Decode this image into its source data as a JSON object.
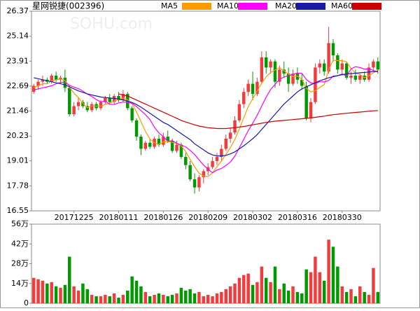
{
  "chart_data": {
    "type": "candlestick",
    "title": "星网锐捷(002396)",
    "watermark": "SOHU.com",
    "categories": [
      null,
      null,
      null,
      null,
      null,
      null,
      null,
      null,
      null,
      "20171225",
      null,
      null,
      null,
      null,
      null,
      null,
      null,
      null,
      null,
      "20180111",
      null,
      null,
      null,
      null,
      null,
      null,
      null,
      null,
      null,
      "20180126",
      null,
      null,
      null,
      null,
      null,
      null,
      null,
      null,
      null,
      "20180209",
      null,
      null,
      null,
      null,
      null,
      null,
      null,
      null,
      null,
      "20180302",
      null,
      null,
      null,
      null,
      null,
      null,
      null,
      null,
      null,
      "20180316",
      null,
      null,
      null,
      null,
      null,
      null,
      null,
      null,
      null,
      "20180330",
      null,
      null,
      null,
      null,
      null,
      null,
      null,
      null
    ],
    "open": [
      22.4,
      22.7,
      22.9,
      23.0,
      22.9,
      23.2,
      23.0,
      23.1,
      22.6,
      21.3,
      21.7,
      21.9,
      21.7,
      21.5,
      21.8,
      21.6,
      21.9,
      22.1,
      21.9,
      22.2,
      22.0,
      22.3,
      21.6,
      21.0,
      20.2,
      19.6,
      19.9,
      19.7,
      20.1,
      19.8,
      20.2,
      20.0,
      19.5,
      19.8,
      19.2,
      18.8,
      18.1,
      17.7,
      18.2,
      18.5,
      18.7,
      19.0,
      19.2,
      19.6,
      20.1,
      20.4,
      21.0,
      21.8,
      22.4,
      22.8,
      22.3,
      22.9,
      24.1,
      23.6,
      23.9,
      22.9,
      23.5,
      23.3,
      22.8,
      23.3,
      23.0,
      22.7,
      21.1,
      21.9,
      23.6,
      23.8,
      23.4,
      24.8,
      24.2,
      23.5,
      23.8,
      23.1,
      23.2,
      23.0,
      23.2,
      23.0,
      23.6,
      23.9
    ],
    "high": [
      22.8,
      23.0,
      23.2,
      23.1,
      23.3,
      23.4,
      23.2,
      23.5,
      22.7,
      21.9,
      22.1,
      22.0,
      21.9,
      21.9,
      21.9,
      22.0,
      22.2,
      22.3,
      22.3,
      22.4,
      22.5,
      22.4,
      21.7,
      21.1,
      20.3,
      20.0,
      20.1,
      20.2,
      20.3,
      20.4,
      20.5,
      20.1,
      20.0,
      19.9,
      19.4,
      19.0,
      18.4,
      18.3,
      18.6,
      18.9,
      19.2,
      19.4,
      19.8,
      20.3,
      20.6,
      21.2,
      22.0,
      22.6,
      23.0,
      23.4,
      23.1,
      24.4,
      24.4,
      24.0,
      24.0,
      23.7,
      23.9,
      23.6,
      23.5,
      23.6,
      23.3,
      22.9,
      22.1,
      23.8,
      24.0,
      24.0,
      25.6,
      25.0,
      24.3,
      24.0,
      23.9,
      23.4,
      23.5,
      23.3,
      23.4,
      23.8,
      24.0,
      24.1
    ],
    "low": [
      22.3,
      22.5,
      22.7,
      22.8,
      22.8,
      22.9,
      22.8,
      22.4,
      21.2,
      21.2,
      21.5,
      21.6,
      21.4,
      21.4,
      21.5,
      21.5,
      21.8,
      21.8,
      21.8,
      21.9,
      21.9,
      21.5,
      20.9,
      20.0,
      19.3,
      19.5,
      19.6,
      19.6,
      19.7,
      19.7,
      19.9,
      19.4,
      19.4,
      19.1,
      18.6,
      18.0,
      17.4,
      17.5,
      17.9,
      18.3,
      18.6,
      18.8,
      19.0,
      19.5,
      19.9,
      20.3,
      20.9,
      21.6,
      22.2,
      22.0,
      22.2,
      22.8,
      23.3,
      23.3,
      22.6,
      22.7,
      23.1,
      22.4,
      22.7,
      22.8,
      22.5,
      21.0,
      20.9,
      21.8,
      23.3,
      23.2,
      23.3,
      23.9,
      23.3,
      23.2,
      23.0,
      22.8,
      22.9,
      22.8,
      22.9,
      22.9,
      23.4,
      23.3
    ],
    "close": [
      22.7,
      22.9,
      23.0,
      22.9,
      23.2,
      23.0,
      23.1,
      22.6,
      21.3,
      21.7,
      21.9,
      21.7,
      21.5,
      21.8,
      21.6,
      21.9,
      22.1,
      21.9,
      22.2,
      22.0,
      22.3,
      21.6,
      21.0,
      20.2,
      19.6,
      19.9,
      19.7,
      20.1,
      19.8,
      20.2,
      20.0,
      19.5,
      19.8,
      19.2,
      18.8,
      18.1,
      17.7,
      18.2,
      18.5,
      18.7,
      19.0,
      19.2,
      19.6,
      20.1,
      20.4,
      21.0,
      21.8,
      22.4,
      22.8,
      22.3,
      22.9,
      24.1,
      23.6,
      23.9,
      22.9,
      23.5,
      23.3,
      22.8,
      23.3,
      23.0,
      22.7,
      21.1,
      21.9,
      23.6,
      23.8,
      23.4,
      24.8,
      24.2,
      23.5,
      23.8,
      23.1,
      23.2,
      23.0,
      23.2,
      23.0,
      23.6,
      23.9,
      23.5
    ],
    "up_color": "#f03c3c",
    "down_color": "#009a00",
    "ylim": [
      16.55,
      26.37
    ],
    "yticks": [
      16.55,
      17.78,
      19.01,
      20.23,
      21.46,
      22.69,
      23.91,
      25.14,
      26.37
    ],
    "series": [
      {
        "name": "MA5",
        "color": "#ff9900",
        "values": [
          22.6,
          22.7,
          22.8,
          22.8,
          22.94,
          23.0,
          23.04,
          22.96,
          22.64,
          22.34,
          22.12,
          21.84,
          21.62,
          21.72,
          21.7,
          21.7,
          21.78,
          21.86,
          21.94,
          22.02,
          22.1,
          22.0,
          21.82,
          21.42,
          20.94,
          20.46,
          20.08,
          19.9,
          19.82,
          19.94,
          19.96,
          19.92,
          19.86,
          19.74,
          19.46,
          19.08,
          18.72,
          18.4,
          18.26,
          18.24,
          18.42,
          18.72,
          19.0,
          19.32,
          19.66,
          20.06,
          20.58,
          21.14,
          21.68,
          22.06,
          22.44,
          22.82,
          23.14,
          23.36,
          23.48,
          23.6,
          23.44,
          23.28,
          23.16,
          23.18,
          23.02,
          22.58,
          22.4,
          22.46,
          22.62,
          22.76,
          23.5,
          23.96,
          23.94,
          23.94,
          23.88,
          23.56,
          23.32,
          23.26,
          23.1,
          23.2,
          23.34,
          23.44
        ]
      },
      {
        "name": "MA10",
        "color": "#ff00ff",
        "values": [
          22.5,
          22.55,
          22.6,
          22.65,
          22.7,
          22.8,
          22.87,
          22.88,
          22.72,
          22.64,
          22.56,
          22.44,
          22.29,
          22.18,
          22.02,
          21.91,
          21.95,
          21.79,
          21.78,
          21.86,
          21.9,
          21.89,
          21.84,
          21.68,
          21.48,
          21.28,
          21.04,
          20.66,
          20.38,
          20.2,
          19.98,
          20.0,
          19.88,
          19.78,
          19.7,
          19.52,
          19.32,
          19.06,
          18.8,
          18.6,
          18.42,
          18.56,
          18.63,
          18.78,
          18.95,
          19.24,
          19.65,
          20.07,
          20.5,
          20.86,
          21.25,
          21.7,
          22.14,
          22.52,
          22.77,
          23.02,
          23.13,
          23.21,
          23.26,
          23.33,
          23.31,
          23.01,
          22.84,
          22.81,
          22.9,
          22.89,
          22.96,
          23.18,
          23.2,
          23.28,
          23.19,
          23.53,
          23.64,
          23.6,
          23.52,
          23.54,
          23.45,
          23.38
        ]
      },
      {
        "name": "MA20",
        "color": "#1a1aa6",
        "values": [
          23.1,
          23.05,
          23.0,
          22.95,
          22.9,
          22.85,
          22.8,
          22.75,
          22.65,
          22.55,
          22.45,
          22.38,
          22.3,
          22.25,
          22.2,
          22.15,
          22.12,
          22.1,
          22.08,
          22.05,
          22.0,
          21.95,
          21.88,
          21.78,
          21.65,
          21.5,
          21.35,
          21.2,
          21.05,
          20.9,
          20.8,
          20.65,
          20.5,
          20.35,
          20.2,
          20.05,
          19.85,
          19.7,
          19.55,
          19.4,
          19.3,
          19.25,
          19.25,
          19.28,
          19.35,
          19.45,
          19.6,
          19.75,
          19.92,
          20.1,
          20.3,
          20.55,
          20.8,
          21.05,
          21.3,
          21.55,
          21.8,
          22.0,
          22.2,
          22.4,
          22.55,
          22.65,
          22.75,
          22.85,
          22.95,
          23.02,
          23.1,
          23.15,
          23.2,
          23.25,
          23.28,
          23.3,
          23.32,
          23.34,
          23.36,
          23.38,
          23.4,
          23.42
        ]
      },
      {
        "name": "MA60",
        "color": "#cc0000",
        "values": [
          null,
          null,
          null,
          null,
          null,
          null,
          null,
          null,
          null,
          null,
          null,
          null,
          null,
          null,
          null,
          null,
          null,
          null,
          null,
          22.3,
          22.25,
          22.2,
          22.1,
          22.0,
          21.9,
          21.8,
          21.7,
          21.6,
          21.5,
          21.4,
          21.3,
          21.2,
          21.1,
          21.0,
          20.92,
          20.85,
          20.78,
          20.72,
          20.68,
          20.64,
          20.62,
          20.6,
          20.6,
          20.6,
          20.62,
          20.64,
          20.67,
          20.7,
          20.74,
          20.78,
          20.82,
          20.86,
          20.9,
          20.93,
          20.96,
          20.98,
          21.0,
          21.02,
          21.04,
          21.06,
          21.08,
          21.1,
          21.12,
          21.15,
          21.18,
          21.21,
          21.25,
          21.28,
          21.3,
          21.33,
          21.35,
          21.37,
          21.39,
          21.41,
          21.43,
          21.45,
          21.47,
          21.48
        ]
      }
    ],
    "volume": {
      "values": [
        18,
        17,
        16,
        14,
        15,
        12,
        11,
        13,
        33,
        12,
        9,
        14,
        10,
        6,
        5,
        5,
        6,
        5,
        7,
        4,
        6,
        9,
        19,
        16,
        12,
        8,
        5,
        6,
        7,
        6,
        5,
        6,
        7,
        11,
        9,
        10,
        7,
        8,
        5,
        6,
        5,
        7,
        8,
        10,
        12,
        14,
        18,
        20,
        21,
        13,
        15,
        26,
        18,
        15,
        26,
        10,
        14,
        9,
        12,
        8,
        7,
        24,
        22,
        33,
        22,
        16,
        45,
        40,
        26,
        12,
        8,
        10,
        5,
        12,
        8,
        6,
        25,
        8
      ],
      "ylim": [
        0,
        56
      ],
      "yticks": [
        0,
        {
          "value": 14,
          "label": "14万"
        },
        {
          "value": 28,
          "label": "28万"
        },
        {
          "value": 42,
          "label": "42万"
        },
        {
          "value": 56,
          "label": "56万"
        }
      ]
    }
  }
}
